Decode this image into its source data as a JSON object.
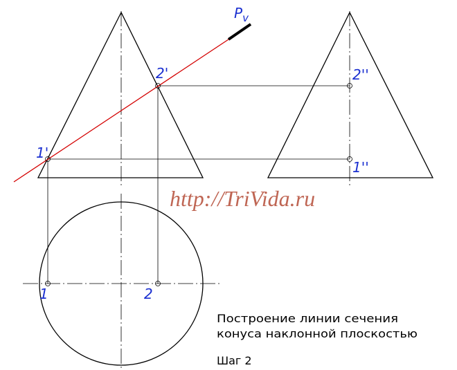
{
  "labels": {
    "plane": {
      "main": "P",
      "sub": "v"
    },
    "front_2": "2'",
    "front_1": "1'",
    "side_2": "2''",
    "side_1": "1''",
    "top_1": "1",
    "top_2": "2"
  },
  "watermark": "http://TriVida.ru",
  "caption": {
    "line1": "Построение линии сечения",
    "line2": "конуса наклонной плоскостью",
    "step": "Шаг 2"
  }
}
